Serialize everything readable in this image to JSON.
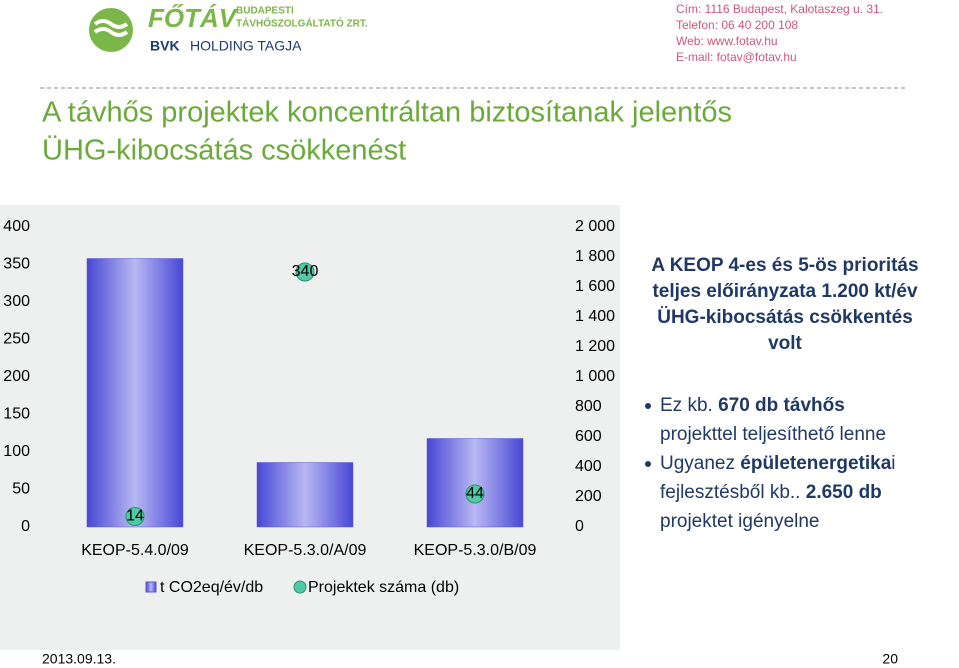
{
  "header": {
    "brand": "FŐTÁV",
    "company_line1": "BUDAPESTI",
    "company_line2": "TÁVHŐSZOLGÁLTATÓ ZRT.",
    "holding_bvk": "BVK",
    "holding_rest": "HOLDING TAGJA",
    "contact": [
      "Cím: 1116 Budapest, Kalotaszeg u. 31.",
      "Telefon: 06 40 200 108",
      "Web: www.fotav.hu",
      "E-mail: fotav@fotav.hu"
    ]
  },
  "title_lines": [
    "A távhős projektek koncentráltan biztosítanak jelentős",
    "ÜHG-kibocsátás csökkenést"
  ],
  "chart_data": {
    "type": "bar",
    "categories": [
      "KEOP-5.4.0/09",
      "KEOP-5.3.0/A/09",
      "KEOP-5.3.0/B/09"
    ],
    "series": [
      {
        "name": "t CO2eq/év/db",
        "color": "#5656d8",
        "values": [
          1790,
          430,
          590
        ],
        "axis": "y2"
      },
      {
        "name": "Projektek száma (db)",
        "type": "scatter",
        "color": "#4fc9a6",
        "values": [
          14,
          340,
          44
        ]
      }
    ],
    "ylim": [
      0,
      400
    ],
    "yticks": [
      0,
      50,
      100,
      150,
      200,
      250,
      300,
      350,
      400
    ],
    "y2lim": [
      0,
      2000
    ],
    "y2ticks": [
      0,
      200,
      400,
      600,
      800,
      {
        "value": 1000,
        "label": "1 000"
      },
      {
        "value": 1200,
        "label": "1 200"
      },
      {
        "value": 1400,
        "label": "1 400"
      },
      {
        "value": 1600,
        "label": "1 600"
      },
      {
        "value": 1800,
        "label": "1 800"
      },
      {
        "value": 2000,
        "label": "2 000"
      }
    ]
  },
  "textbox": {
    "heading_lines": [
      "A KEOP 4-es és 5-ös prioritás",
      "teljes előirányzata 1.200 kt/év",
      "ÜHG-kibocsátás csökkentés",
      "volt"
    ],
    "bullets": [
      [
        [
          {
            "text": "Ez kb. ",
            "bold": false
          },
          {
            "text": "670 db távhős",
            "bold": true
          }
        ],
        [
          {
            "text": "projekttel teljesíthető lenne",
            "bold": false
          }
        ]
      ],
      [
        [
          {
            "text": "Ugyanez ",
            "bold": false
          },
          {
            "text": "épületenergetika",
            "bold": true
          },
          {
            "text": "i",
            "bold": false
          }
        ],
        [
          {
            "text": "fejlesztésből kb.. ",
            "bold": false
          },
          {
            "text": "2.650 db",
            "bold": true
          }
        ],
        [
          {
            "text": "projektet igényelne",
            "bold": false
          }
        ]
      ]
    ]
  },
  "footer": {
    "date": "2013.09.13.",
    "page": "20"
  }
}
